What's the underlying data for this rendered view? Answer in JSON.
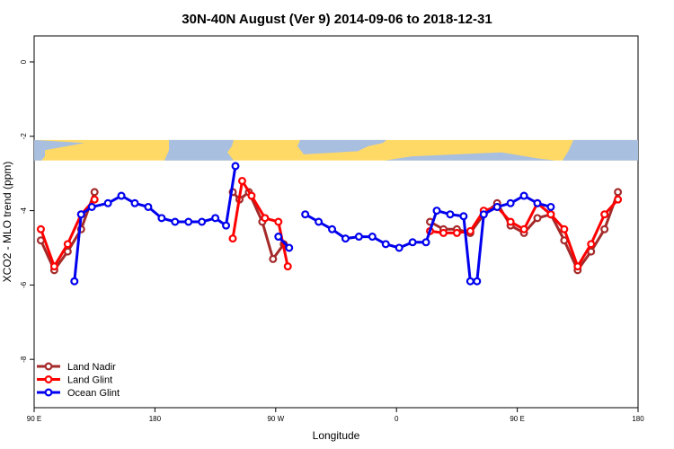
{
  "chart_data": {
    "type": "line",
    "title": "30N-40N August (Ver 9)   2014-09-06 to 2018-12-31",
    "xlabel": "Longitude",
    "ylabel": "XCO2 - MLO trend (ppm)",
    "xlim": [
      90,
      540
    ],
    "ylim": [
      -9.3,
      0.7
    ],
    "x_ticks": [
      {
        "value": 90,
        "label": "90 E"
      },
      {
        "value": 180,
        "label": "180"
      },
      {
        "value": 270,
        "label": "90 W"
      },
      {
        "value": 360,
        "label": "0"
      },
      {
        "value": 450,
        "label": "90 E"
      },
      {
        "value": 540,
        "label": "180"
      }
    ],
    "y_ticks": [
      {
        "value": 0,
        "label": "0"
      },
      {
        "value": -2,
        "label": "-2"
      },
      {
        "value": -4,
        "label": "-4"
      },
      {
        "value": -6,
        "label": "-6"
      },
      {
        "value": -8,
        "label": "-8"
      }
    ],
    "grid": false,
    "legend_position": "bottom-left",
    "map_strip": {
      "y_top": -2.1,
      "y_bottom": -2.65,
      "land_color": "#ffd966",
      "ocean_color": "#a8bfe0"
    },
    "series": [
      {
        "name": "Land Nadir",
        "color": "#a52a2a",
        "segments": [
          [
            [
              95,
              -4.8
            ],
            [
              105,
              -5.6
            ],
            [
              115,
              -5.1
            ],
            [
              125,
              -4.5
            ],
            [
              135,
              -3.5
            ]
          ],
          [
            [
              238,
              -3.5
            ],
            [
              243,
              -3.7
            ],
            [
              250,
              -3.5
            ],
            [
              260,
              -4.3
            ],
            [
              268,
              -5.3
            ],
            [
              276,
              -4.9
            ]
          ],
          [
            [
              385,
              -4.3
            ],
            [
              395,
              -4.5
            ],
            [
              405,
              -4.5
            ],
            [
              415,
              -4.6
            ],
            [
              425,
              -4.1
            ],
            [
              435,
              -3.8
            ],
            [
              445,
              -4.4
            ],
            [
              455,
              -4.6
            ],
            [
              465,
              -4.2
            ],
            [
              475,
              -4.1
            ],
            [
              485,
              -4.8
            ],
            [
              495,
              -5.6
            ],
            [
              505,
              -5.1
            ],
            [
              515,
              -4.5
            ],
            [
              525,
              -3.5
            ]
          ]
        ]
      },
      {
        "name": "Land Glint",
        "color": "#ff0000",
        "segments": [
          [
            [
              95,
              -4.5
            ],
            [
              105,
              -5.5
            ],
            [
              115,
              -4.9
            ],
            [
              125,
              -4.1
            ],
            [
              135,
              -3.7
            ]
          ],
          [
            [
              238,
              -4.75
            ],
            [
              245,
              -3.2
            ],
            [
              252,
              -3.6
            ],
            [
              262,
              -4.2
            ],
            [
              272,
              -4.3
            ],
            [
              279,
              -5.5
            ]
          ],
          [
            [
              385,
              -4.55
            ],
            [
              395,
              -4.6
            ],
            [
              405,
              -4.6
            ],
            [
              415,
              -4.55
            ],
            [
              425,
              -4.0
            ],
            [
              435,
              -3.9
            ],
            [
              445,
              -4.3
            ],
            [
              455,
              -4.5
            ],
            [
              465,
              -3.8
            ],
            [
              475,
              -4.1
            ],
            [
              485,
              -4.5
            ],
            [
              495,
              -5.5
            ],
            [
              505,
              -4.9
            ],
            [
              515,
              -4.1
            ],
            [
              525,
              -3.7
            ]
          ]
        ]
      },
      {
        "name": "Ocean Glint",
        "color": "#0000ee",
        "segments": [
          [
            [
              120,
              -5.9
            ],
            [
              125,
              -4.1
            ],
            [
              133,
              -3.9
            ],
            [
              145,
              -3.8
            ],
            [
              155,
              -3.6
            ],
            [
              165,
              -3.8
            ],
            [
              175,
              -3.9
            ],
            [
              185,
              -4.2
            ],
            [
              195,
              -4.3
            ],
            [
              205,
              -4.3
            ],
            [
              215,
              -4.3
            ],
            [
              225,
              -4.2
            ],
            [
              233,
              -4.4
            ],
            [
              240,
              -2.8
            ]
          ],
          [
            [
              272,
              -4.7
            ],
            [
              280,
              -5.0
            ]
          ],
          [
            [
              292,
              -4.1
            ],
            [
              302,
              -4.3
            ],
            [
              312,
              -4.5
            ],
            [
              322,
              -4.75
            ],
            [
              332,
              -4.7
            ],
            [
              342,
              -4.7
            ],
            [
              352,
              -4.9
            ],
            [
              362,
              -5.0
            ],
            [
              372,
              -4.85
            ],
            [
              382,
              -4.85
            ],
            [
              390,
              -4.0
            ],
            [
              400,
              -4.1
            ],
            [
              410,
              -4.15
            ],
            [
              415,
              -5.9
            ]
          ],
          [
            [
              420,
              -5.9
            ],
            [
              425,
              -4.1
            ],
            [
              435,
              -3.9
            ],
            [
              445,
              -3.8
            ],
            [
              455,
              -3.6
            ],
            [
              465,
              -3.8
            ],
            [
              475,
              -3.9
            ]
          ]
        ]
      }
    ]
  }
}
